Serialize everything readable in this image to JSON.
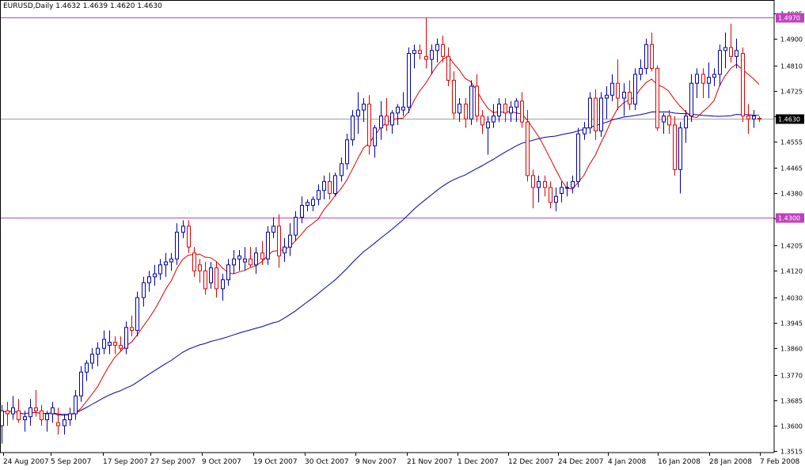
{
  "header": {
    "title": "EURUSD,Daily  1.4632 1.4639 1.4620 1.4630"
  },
  "chart_data": {
    "type": "candlestick",
    "symbol": "EURUSD",
    "timeframe": "Daily",
    "ohlc_label": "1.4632 1.4639 1.4620 1.4630",
    "ylim": [
      1.3515,
      1.4995
    ],
    "yticks": [
      "1.4985",
      "1.4900",
      "1.4810",
      "1.4725",
      "1.4640",
      "1.4555",
      "1.4465",
      "1.4380",
      "1.4295",
      "1.4205",
      "1.4120",
      "1.4030",
      "1.3945",
      "1.3860",
      "1.3770",
      "1.3685",
      "1.3600",
      "1.3515"
    ],
    "xlabels": [
      "24 Aug 2007",
      "5 Sep 2007",
      "17 Sep 2007",
      "27 Sep 2007",
      "9 Oct 2007",
      "19 Oct 2007",
      "30 Oct 2007",
      "9 Nov 2007",
      "21 Nov 2007",
      "1 Dec 2007",
      "12 Dec 2007",
      "24 Dec 2007",
      "4 Jan 2008",
      "16 Jan 2008",
      "28 Jan 2008",
      "7 Feb 2008"
    ],
    "horizontal_levels": [
      {
        "value": 1.497,
        "label": "1.4970",
        "color": "#c040c0"
      },
      {
        "value": 1.43,
        "label": "1.4300",
        "color": "#c040c0"
      },
      {
        "value": 1.463,
        "label": "1.4630",
        "color": "#a0a0a0"
      }
    ],
    "current_price": "1.4630",
    "bull_color": "#0000aa",
    "bear_color": "#e00000",
    "fast_ma_color": "#e00000",
    "slow_ma_color": "#0000aa",
    "candles": [
      [
        1.36,
        1.367,
        1.354,
        1.365
      ],
      [
        1.365,
        1.368,
        1.36,
        1.364
      ],
      [
        1.364,
        1.37,
        1.362,
        1.366
      ],
      [
        1.365,
        1.369,
        1.361,
        1.362
      ],
      [
        1.362,
        1.365,
        1.358,
        1.363
      ],
      [
        1.363,
        1.369,
        1.36,
        1.366
      ],
      [
        1.366,
        1.372,
        1.363,
        1.365
      ],
      [
        1.365,
        1.367,
        1.36,
        1.362
      ],
      [
        1.362,
        1.365,
        1.358,
        1.364
      ],
      [
        1.364,
        1.368,
        1.361,
        1.366
      ],
      [
        1.361,
        1.366,
        1.357,
        1.36
      ],
      [
        1.36,
        1.364,
        1.357,
        1.362
      ],
      [
        1.362,
        1.366,
        1.36,
        1.364
      ],
      [
        1.364,
        1.372,
        1.362,
        1.37
      ],
      [
        1.37,
        1.38,
        1.368,
        1.378
      ],
      [
        1.378,
        1.382,
        1.375,
        1.381
      ],
      [
        1.381,
        1.386,
        1.379,
        1.384
      ],
      [
        1.384,
        1.388,
        1.38,
        1.386
      ],
      [
        1.386,
        1.392,
        1.384,
        1.389
      ],
      [
        1.387,
        1.392,
        1.384,
        1.388
      ],
      [
        1.388,
        1.39,
        1.384,
        1.387
      ],
      [
        1.387,
        1.39,
        1.385,
        1.386
      ],
      [
        1.386,
        1.395,
        1.384,
        1.393
      ],
      [
        1.393,
        1.397,
        1.39,
        1.392
      ],
      [
        1.392,
        1.405,
        1.39,
        1.403
      ],
      [
        1.403,
        1.41,
        1.4,
        1.408
      ],
      [
        1.408,
        1.412,
        1.405,
        1.41
      ],
      [
        1.41,
        1.414,
        1.407,
        1.411
      ],
      [
        1.411,
        1.416,
        1.409,
        1.414
      ],
      [
        1.414,
        1.418,
        1.41,
        1.415
      ],
      [
        1.415,
        1.418,
        1.412,
        1.416
      ],
      [
        1.416,
        1.428,
        1.414,
        1.425
      ],
      [
        1.425,
        1.429,
        1.423,
        1.427
      ],
      [
        1.427,
        1.429,
        1.418,
        1.42
      ],
      [
        1.418,
        1.42,
        1.41,
        1.412
      ],
      [
        1.414,
        1.416,
        1.408,
        1.412
      ],
      [
        1.412,
        1.415,
        1.404,
        1.406
      ],
      [
        1.408,
        1.415,
        1.406,
        1.413
      ],
      [
        1.413,
        1.415,
        1.403,
        1.406
      ],
      [
        1.406,
        1.411,
        1.402,
        1.409
      ],
      [
        1.409,
        1.416,
        1.407,
        1.414
      ],
      [
        1.414,
        1.419,
        1.411,
        1.416
      ],
      [
        1.416,
        1.419,
        1.412,
        1.417
      ],
      [
        1.415,
        1.42,
        1.412,
        1.416
      ],
      [
        1.416,
        1.42,
        1.413,
        1.414
      ],
      [
        1.414,
        1.42,
        1.411,
        1.418
      ],
      [
        1.418,
        1.422,
        1.414,
        1.416
      ],
      [
        1.416,
        1.427,
        1.414,
        1.425
      ],
      [
        1.425,
        1.43,
        1.423,
        1.427
      ],
      [
        1.427,
        1.431,
        1.413,
        1.417
      ],
      [
        1.418,
        1.423,
        1.415,
        1.42
      ],
      [
        1.42,
        1.428,
        1.417,
        1.424
      ],
      [
        1.424,
        1.432,
        1.422,
        1.43
      ],
      [
        1.43,
        1.437,
        1.428,
        1.434
      ],
      [
        1.434,
        1.436,
        1.432,
        1.435
      ],
      [
        1.434,
        1.437,
        1.432,
        1.436
      ],
      [
        1.436,
        1.441,
        1.434,
        1.439
      ],
      [
        1.439,
        1.444,
        1.436,
        1.442
      ],
      [
        1.442,
        1.445,
        1.436,
        1.438
      ],
      [
        1.438,
        1.445,
        1.437,
        1.444
      ],
      [
        1.444,
        1.45,
        1.442,
        1.448
      ],
      [
        1.448,
        1.458,
        1.446,
        1.456
      ],
      [
        1.456,
        1.466,
        1.454,
        1.464
      ],
      [
        1.464,
        1.472,
        1.458,
        1.466
      ],
      [
        1.466,
        1.47,
        1.462,
        1.468
      ],
      [
        1.468,
        1.471,
        1.451,
        1.454
      ],
      [
        1.454,
        1.461,
        1.45,
        1.46
      ],
      [
        1.46,
        1.469,
        1.456,
        1.464
      ],
      [
        1.464,
        1.47,
        1.459,
        1.461
      ],
      [
        1.461,
        1.466,
        1.458,
        1.465
      ],
      [
        1.465,
        1.468,
        1.461,
        1.467
      ],
      [
        1.466,
        1.472,
        1.464,
        1.467
      ],
      [
        1.467,
        1.487,
        1.465,
        1.485
      ],
      [
        1.485,
        1.488,
        1.48,
        1.486
      ],
      [
        1.486,
        1.488,
        1.483,
        1.485
      ],
      [
        1.484,
        1.497,
        1.48,
        1.483
      ],
      [
        1.483,
        1.488,
        1.478,
        1.486
      ],
      [
        1.486,
        1.49,
        1.482,
        1.488
      ],
      [
        1.488,
        1.491,
        1.482,
        1.484
      ],
      [
        1.484,
        1.487,
        1.474,
        1.476
      ],
      [
        1.476,
        1.479,
        1.463,
        1.465
      ],
      [
        1.465,
        1.47,
        1.462,
        1.468
      ],
      [
        1.468,
        1.47,
        1.46,
        1.463
      ],
      [
        1.463,
        1.476,
        1.461,
        1.474
      ],
      [
        1.474,
        1.478,
        1.462,
        1.464
      ],
      [
        1.464,
        1.466,
        1.458,
        1.461
      ],
      [
        1.46,
        1.464,
        1.451,
        1.462
      ],
      [
        1.462,
        1.468,
        1.46,
        1.464
      ],
      [
        1.464,
        1.47,
        1.462,
        1.468
      ],
      [
        1.468,
        1.47,
        1.462,
        1.465
      ],
      [
        1.465,
        1.469,
        1.462,
        1.467
      ],
      [
        1.467,
        1.47,
        1.462,
        1.469
      ],
      [
        1.469,
        1.472,
        1.46,
        1.462
      ],
      [
        1.462,
        1.466,
        1.442,
        1.444
      ],
      [
        1.444,
        1.446,
        1.433,
        1.44
      ],
      [
        1.44,
        1.444,
        1.435,
        1.442
      ],
      [
        1.442,
        1.444,
        1.437,
        1.44
      ],
      [
        1.44,
        1.442,
        1.433,
        1.435
      ],
      [
        1.435,
        1.44,
        1.432,
        1.437
      ],
      [
        1.438,
        1.442,
        1.435,
        1.44
      ],
      [
        1.44,
        1.442,
        1.437,
        1.44
      ],
      [
        1.44,
        1.444,
        1.438,
        1.442
      ],
      [
        1.442,
        1.46,
        1.44,
        1.458
      ],
      [
        1.458,
        1.462,
        1.456,
        1.46
      ],
      [
        1.46,
        1.472,
        1.458,
        1.47
      ],
      [
        1.47,
        1.473,
        1.456,
        1.459
      ],
      [
        1.459,
        1.472,
        1.457,
        1.47
      ],
      [
        1.47,
        1.474,
        1.463,
        1.471
      ],
      [
        1.471,
        1.478,
        1.469,
        1.475
      ],
      [
        1.475,
        1.483,
        1.466,
        1.47
      ],
      [
        1.47,
        1.475,
        1.464,
        1.472
      ],
      [
        1.472,
        1.476,
        1.466,
        1.468
      ],
      [
        1.468,
        1.48,
        1.466,
        1.478
      ],
      [
        1.478,
        1.483,
        1.476,
        1.48
      ],
      [
        1.48,
        1.49,
        1.478,
        1.488
      ],
      [
        1.488,
        1.492,
        1.479,
        1.48
      ],
      [
        1.48,
        1.481,
        1.459,
        1.46
      ],
      [
        1.462,
        1.465,
        1.458,
        1.464
      ],
      [
        1.464,
        1.466,
        1.458,
        1.461
      ],
      [
        1.461,
        1.464,
        1.444,
        1.446
      ],
      [
        1.446,
        1.462,
        1.438,
        1.46
      ],
      [
        1.46,
        1.466,
        1.455,
        1.464
      ],
      [
        1.464,
        1.478,
        1.462,
        1.475
      ],
      [
        1.475,
        1.48,
        1.47,
        1.478
      ],
      [
        1.478,
        1.48,
        1.47,
        1.475
      ],
      [
        1.475,
        1.482,
        1.47,
        1.477
      ],
      [
        1.477,
        1.48,
        1.474,
        1.478
      ],
      [
        1.478,
        1.488,
        1.474,
        1.486
      ],
      [
        1.486,
        1.492,
        1.48,
        1.487
      ],
      [
        1.487,
        1.495,
        1.482,
        1.484
      ],
      [
        1.484,
        1.49,
        1.48,
        1.486
      ],
      [
        1.485,
        1.487,
        1.462,
        1.464
      ],
      [
        1.464,
        1.468,
        1.458,
        1.463
      ],
      [
        1.463,
        1.466,
        1.46,
        1.464
      ],
      [
        1.4632,
        1.4639,
        1.462,
        1.463
      ]
    ]
  }
}
